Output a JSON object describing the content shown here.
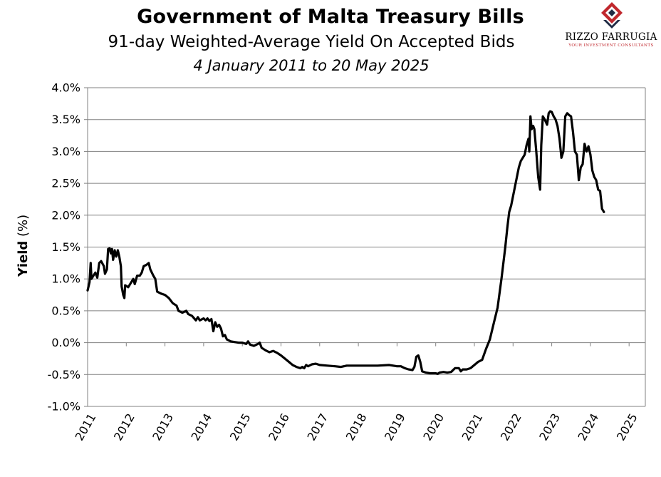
{
  "header": {
    "title": "Government of Malta Treasury Bills",
    "subtitle": "91-day Weighted-Average Yield On Accepted Bids",
    "date_range": "4 January 2011 to 20 May 2025"
  },
  "logo": {
    "name": "RIZZO FARRUGIA",
    "tagline": "YOUR INVESTMENT CONSULTANTS",
    "accent_color": "#c0272d",
    "dark_color": "#1f2a44"
  },
  "chart_data": {
    "type": "line",
    "title": "Government of Malta Treasury Bills",
    "subtitle": "91-day Weighted-Average Yield On Accepted Bids",
    "xlabel": "",
    "ylabel": "Yield (%)",
    "ylabel_parts": [
      "Yield",
      " (%)"
    ],
    "ylim": [
      -1.0,
      4.0
    ],
    "xlim": [
      2011.0,
      2025.42
    ],
    "y_ticks": [
      -1.0,
      -0.5,
      0.0,
      0.5,
      1.0,
      1.5,
      2.0,
      2.5,
      3.0,
      3.5,
      4.0
    ],
    "y_tick_labels": [
      "-1.0%",
      "-0.5%",
      "0.0%",
      "0.5%",
      "1.0%",
      "1.5%",
      "2.0%",
      "2.5%",
      "3.0%",
      "3.5%",
      "4.0%"
    ],
    "x_ticks": [
      2011,
      2012,
      2013,
      2014,
      2015,
      2016,
      2017,
      2018,
      2019,
      2020,
      2021,
      2022,
      2023,
      2024,
      2025
    ],
    "x_tick_labels": [
      "2011",
      "2012",
      "2013",
      "2014",
      "2015",
      "2016",
      "2017",
      "2018",
      "2019",
      "2020",
      "2021",
      "2022",
      "2023",
      "2024",
      "2025"
    ],
    "grid": true,
    "line_color": "#000000",
    "series": [
      {
        "points": [
          [
            2011.0,
            0.82
          ],
          [
            2011.05,
            0.95
          ],
          [
            2011.08,
            1.25
          ],
          [
            2011.1,
            1.0
          ],
          [
            2011.15,
            1.05
          ],
          [
            2011.2,
            1.1
          ],
          [
            2011.25,
            1.02
          ],
          [
            2011.3,
            1.25
          ],
          [
            2011.35,
            1.28
          ],
          [
            2011.42,
            1.2
          ],
          [
            2011.45,
            1.08
          ],
          [
            2011.5,
            1.15
          ],
          [
            2011.53,
            1.47
          ],
          [
            2011.57,
            1.48
          ],
          [
            2011.6,
            1.4
          ],
          [
            2011.63,
            1.47
          ],
          [
            2011.66,
            1.3
          ],
          [
            2011.7,
            1.45
          ],
          [
            2011.74,
            1.35
          ],
          [
            2011.78,
            1.45
          ],
          [
            2011.82,
            1.35
          ],
          [
            2011.86,
            1.2
          ],
          [
            2011.88,
            0.88
          ],
          [
            2011.92,
            0.75
          ],
          [
            2011.95,
            0.7
          ],
          [
            2011.97,
            0.9
          ],
          [
            2012.05,
            0.87
          ],
          [
            2012.1,
            0.92
          ],
          [
            2012.18,
            1.0
          ],
          [
            2012.22,
            0.92
          ],
          [
            2012.28,
            1.05
          ],
          [
            2012.35,
            1.05
          ],
          [
            2012.4,
            1.1
          ],
          [
            2012.45,
            1.2
          ],
          [
            2012.52,
            1.22
          ],
          [
            2012.58,
            1.25
          ],
          [
            2012.62,
            1.15
          ],
          [
            2012.7,
            1.05
          ],
          [
            2012.75,
            1.0
          ],
          [
            2012.8,
            0.8
          ],
          [
            2012.9,
            0.77
          ],
          [
            2013.0,
            0.75
          ],
          [
            2013.1,
            0.7
          ],
          [
            2013.2,
            0.62
          ],
          [
            2013.3,
            0.58
          ],
          [
            2013.35,
            0.5
          ],
          [
            2013.45,
            0.47
          ],
          [
            2013.55,
            0.5
          ],
          [
            2013.6,
            0.45
          ],
          [
            2013.7,
            0.42
          ],
          [
            2013.8,
            0.35
          ],
          [
            2013.85,
            0.4
          ],
          [
            2013.9,
            0.35
          ],
          [
            2014.0,
            0.38
          ],
          [
            2014.05,
            0.35
          ],
          [
            2014.1,
            0.38
          ],
          [
            2014.15,
            0.34
          ],
          [
            2014.2,
            0.37
          ],
          [
            2014.25,
            0.18
          ],
          [
            2014.3,
            0.32
          ],
          [
            2014.35,
            0.25
          ],
          [
            2014.4,
            0.28
          ],
          [
            2014.45,
            0.22
          ],
          [
            2014.5,
            0.1
          ],
          [
            2014.55,
            0.12
          ],
          [
            2014.6,
            0.05
          ],
          [
            2014.7,
            0.02
          ],
          [
            2014.8,
            0.01
          ],
          [
            2014.9,
            0.0
          ],
          [
            2015.0,
            0.0
          ],
          [
            2015.1,
            -0.02
          ],
          [
            2015.15,
            0.02
          ],
          [
            2015.2,
            -0.03
          ],
          [
            2015.3,
            -0.05
          ],
          [
            2015.4,
            -0.02
          ],
          [
            2015.45,
            0.0
          ],
          [
            2015.5,
            -0.08
          ],
          [
            2015.6,
            -0.12
          ],
          [
            2015.7,
            -0.15
          ],
          [
            2015.8,
            -0.13
          ],
          [
            2015.9,
            -0.16
          ],
          [
            2016.0,
            -0.2
          ],
          [
            2016.1,
            -0.25
          ],
          [
            2016.2,
            -0.3
          ],
          [
            2016.3,
            -0.35
          ],
          [
            2016.4,
            -0.38
          ],
          [
            2016.5,
            -0.4
          ],
          [
            2016.55,
            -0.38
          ],
          [
            2016.6,
            -0.4
          ],
          [
            2016.65,
            -0.35
          ],
          [
            2016.7,
            -0.37
          ],
          [
            2016.8,
            -0.34
          ],
          [
            2016.9,
            -0.33
          ],
          [
            2017.0,
            -0.35
          ],
          [
            2017.2,
            -0.36
          ],
          [
            2017.4,
            -0.37
          ],
          [
            2017.55,
            -0.38
          ],
          [
            2017.7,
            -0.36
          ],
          [
            2018.0,
            -0.36
          ],
          [
            2018.5,
            -0.36
          ],
          [
            2018.8,
            -0.35
          ],
          [
            2019.0,
            -0.37
          ],
          [
            2019.1,
            -0.37
          ],
          [
            2019.2,
            -0.4
          ],
          [
            2019.3,
            -0.42
          ],
          [
            2019.4,
            -0.43
          ],
          [
            2019.45,
            -0.38
          ],
          [
            2019.5,
            -0.22
          ],
          [
            2019.55,
            -0.2
          ],
          [
            2019.6,
            -0.3
          ],
          [
            2019.65,
            -0.45
          ],
          [
            2019.75,
            -0.47
          ],
          [
            2019.85,
            -0.48
          ],
          [
            2020.0,
            -0.48
          ],
          [
            2020.05,
            -0.49
          ],
          [
            2020.1,
            -0.47
          ],
          [
            2020.2,
            -0.46
          ],
          [
            2020.3,
            -0.47
          ],
          [
            2020.4,
            -0.46
          ],
          [
            2020.5,
            -0.4
          ],
          [
            2020.6,
            -0.4
          ],
          [
            2020.65,
            -0.45
          ],
          [
            2020.7,
            -0.42
          ],
          [
            2020.8,
            -0.42
          ],
          [
            2020.9,
            -0.4
          ],
          [
            2021.0,
            -0.35
          ],
          [
            2021.1,
            -0.3
          ],
          [
            2021.2,
            -0.27
          ],
          [
            2021.3,
            -0.1
          ],
          [
            2021.4,
            0.05
          ],
          [
            2021.5,
            0.3
          ],
          [
            2021.6,
            0.55
          ],
          [
            2021.7,
            1.0
          ],
          [
            2021.8,
            1.5
          ],
          [
            2021.85,
            1.8
          ],
          [
            2021.9,
            2.05
          ],
          [
            2021.95,
            2.15
          ],
          [
            2022.0,
            2.3
          ],
          [
            2022.05,
            2.45
          ],
          [
            2022.1,
            2.6
          ],
          [
            2022.15,
            2.75
          ],
          [
            2022.2,
            2.85
          ],
          [
            2022.3,
            2.95
          ],
          [
            2022.35,
            3.1
          ],
          [
            2022.4,
            3.2
          ],
          [
            2022.42,
            3.0
          ],
          [
            2022.45,
            3.55
          ],
          [
            2022.48,
            3.35
          ],
          [
            2022.52,
            3.4
          ],
          [
            2022.55,
            3.35
          ],
          [
            2022.6,
            3.0
          ],
          [
            2022.65,
            2.6
          ],
          [
            2022.7,
            2.4
          ],
          [
            2022.73,
            3.1
          ],
          [
            2022.77,
            3.55
          ],
          [
            2022.82,
            3.5
          ],
          [
            2022.88,
            3.42
          ],
          [
            2022.92,
            3.6
          ],
          [
            2022.96,
            3.63
          ],
          [
            2023.0,
            3.62
          ],
          [
            2023.05,
            3.55
          ],
          [
            2023.1,
            3.5
          ],
          [
            2023.15,
            3.4
          ],
          [
            2023.2,
            3.2
          ],
          [
            2023.25,
            2.9
          ],
          [
            2023.3,
            3.0
          ],
          [
            2023.35,
            3.55
          ],
          [
            2023.4,
            3.6
          ],
          [
            2023.45,
            3.57
          ],
          [
            2023.5,
            3.55
          ],
          [
            2023.55,
            3.3
          ],
          [
            2023.6,
            3.0
          ],
          [
            2023.65,
            2.95
          ],
          [
            2023.7,
            2.55
          ],
          [
            2023.75,
            2.75
          ],
          [
            2023.8,
            2.8
          ],
          [
            2023.85,
            3.12
          ],
          [
            2023.9,
            3.0
          ],
          [
            2023.95,
            3.08
          ],
          [
            2024.0,
            2.95
          ],
          [
            2024.05,
            2.7
          ],
          [
            2024.1,
            2.6
          ],
          [
            2024.15,
            2.55
          ],
          [
            2024.2,
            2.4
          ],
          [
            2024.25,
            2.38
          ],
          [
            2024.3,
            2.1
          ],
          [
            2024.35,
            2.05
          ]
        ]
      }
    ]
  }
}
